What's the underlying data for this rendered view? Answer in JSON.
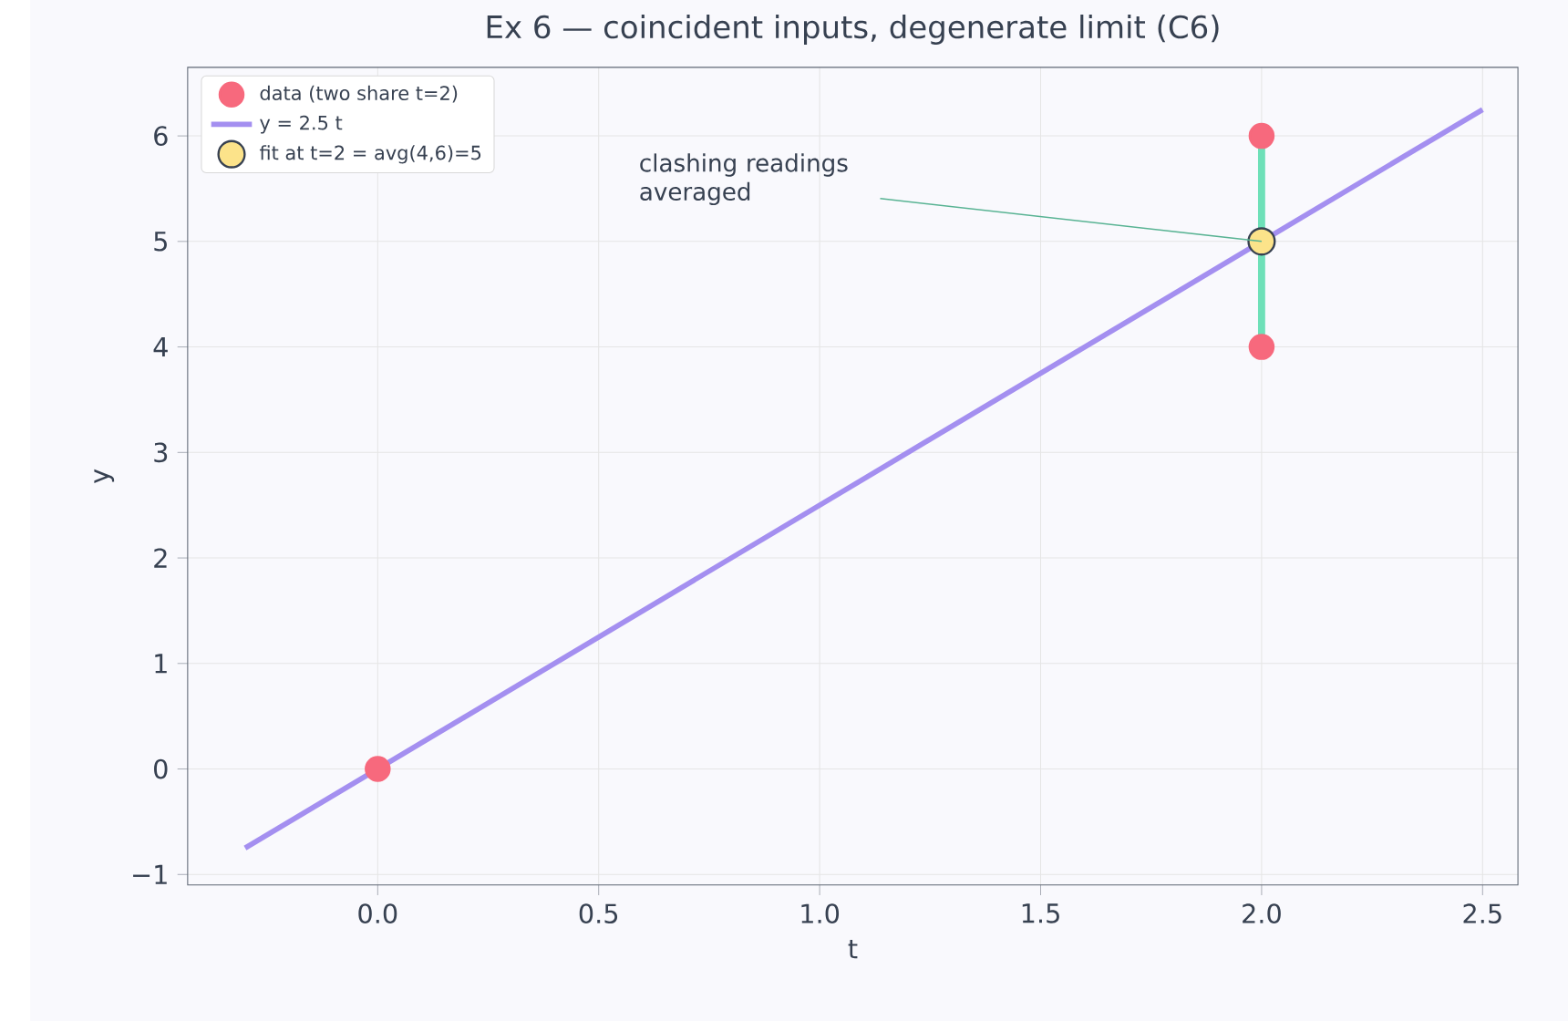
{
  "chart_data": {
    "type": "scatter",
    "title": "Ex 6 — coincident inputs, degenerate limit (C6)",
    "xlabel": "t",
    "ylabel": "y",
    "xlim": [
      -0.43,
      2.58
    ],
    "ylim": [
      -1.1,
      6.65
    ],
    "xticks": [
      {
        "value": 0,
        "label": "0.0"
      },
      0.5,
      {
        "value": 1,
        "label": "1.0"
      },
      1.5,
      {
        "value": 2,
        "label": "2.0"
      },
      2.5
    ],
    "yticks": [
      {
        "value": -1,
        "label": "−1"
      },
      0,
      1,
      2,
      3,
      4,
      5,
      6
    ],
    "grid": true,
    "legend": "top left",
    "series": [
      {
        "name": "data (two share t=2)",
        "marker": "circle",
        "color": "#f7697d",
        "x": [
          0,
          2,
          2
        ],
        "values": [
          0,
          4,
          6
        ]
      },
      {
        "name": "y = 2.5 t",
        "type": "line",
        "marker": "none",
        "color": "#a48ff0",
        "x": [
          -0.3,
          2.5
        ],
        "values": [
          -0.75,
          6.25
        ]
      },
      {
        "type": "line",
        "marker": "none",
        "color": "#6ee0b8",
        "x": [
          2,
          2
        ],
        "values": [
          4,
          6
        ]
      },
      {
        "name": "fit at t=2 = avg(4,6)=5",
        "marker": "circle",
        "color": "#fce38a",
        "x": [
          2
        ],
        "values": [
          5
        ]
      }
    ],
    "annotations": [
      "clashing readings\naveraged"
    ]
  }
}
